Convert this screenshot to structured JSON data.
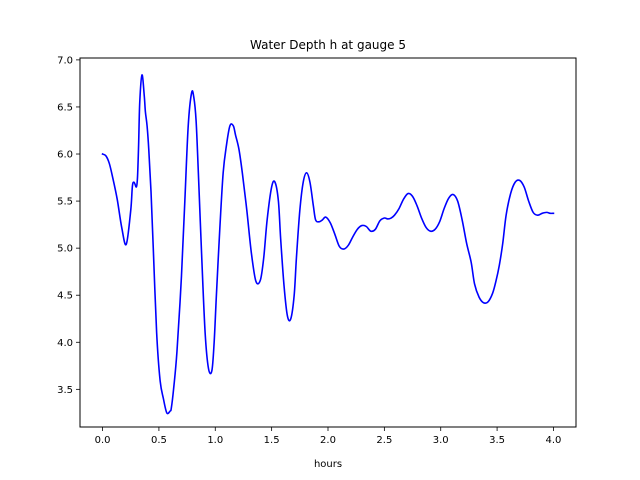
{
  "chart_data": {
    "type": "line",
    "title": "Water Depth h at gauge 5",
    "xlabel": "hours",
    "ylabel": "",
    "xlim": [
      -0.2,
      4.2
    ],
    "ylim": [
      3.1,
      7.02
    ],
    "grid": false,
    "x_ticks": [
      0.0,
      0.5,
      1.0,
      1.5,
      2.0,
      2.5,
      3.0,
      3.5,
      4.0
    ],
    "x_tick_labels": [
      "0.0",
      "0.5",
      "1.0",
      "1.5",
      "2.0",
      "2.5",
      "3.0",
      "3.5",
      "4.0"
    ],
    "y_ticks": [
      3.5,
      4.0,
      4.5,
      5.0,
      5.5,
      6.0,
      6.5,
      7.0
    ],
    "y_tick_labels": [
      "3.5",
      "4.0",
      "4.5",
      "5.0",
      "5.5",
      "6.0",
      "6.5",
      "7.0"
    ],
    "series": [
      {
        "color": "#0000ff",
        "x": [
          0.0,
          0.03,
          0.06,
          0.09,
          0.13,
          0.17,
          0.21,
          0.25,
          0.265,
          0.28,
          0.3,
          0.31,
          0.32,
          0.33,
          0.35,
          0.37,
          0.38,
          0.395,
          0.41,
          0.43,
          0.45,
          0.48,
          0.51,
          0.54,
          0.57,
          0.6,
          0.61,
          0.63,
          0.66,
          0.7,
          0.73,
          0.76,
          0.79,
          0.81,
          0.83,
          0.85,
          0.88,
          0.91,
          0.94,
          0.97,
          0.99,
          1.01,
          1.04,
          1.07,
          1.1,
          1.13,
          1.16,
          1.18,
          1.21,
          1.24,
          1.28,
          1.32,
          1.36,
          1.4,
          1.43,
          1.46,
          1.5,
          1.53,
          1.56,
          1.58,
          1.61,
          1.64,
          1.67,
          1.7,
          1.72,
          1.75,
          1.78,
          1.81,
          1.84,
          1.87,
          1.89,
          1.92,
          1.95,
          1.98,
          2.02,
          2.06,
          2.1,
          2.14,
          2.18,
          2.22,
          2.26,
          2.3,
          2.34,
          2.38,
          2.42,
          2.46,
          2.5,
          2.53,
          2.56,
          2.59,
          2.63,
          2.67,
          2.71,
          2.75,
          2.79,
          2.83,
          2.87,
          2.91,
          2.95,
          2.99,
          3.03,
          3.07,
          3.11,
          3.15,
          3.19,
          3.23,
          3.27,
          3.3,
          3.34,
          3.38,
          3.42,
          3.46,
          3.49,
          3.52,
          3.55,
          3.58,
          3.62,
          3.66,
          3.7,
          3.74,
          3.78,
          3.82,
          3.86,
          3.9,
          3.94,
          3.97,
          4.0
        ],
        "values": [
          6.0,
          5.98,
          5.9,
          5.75,
          5.52,
          5.22,
          5.04,
          5.4,
          5.66,
          5.7,
          5.65,
          5.75,
          6.1,
          6.55,
          6.84,
          6.62,
          6.45,
          6.3,
          6.05,
          5.6,
          5.0,
          4.1,
          3.6,
          3.4,
          3.25,
          3.27,
          3.3,
          3.5,
          3.9,
          4.7,
          5.5,
          6.3,
          6.65,
          6.6,
          6.35,
          5.8,
          4.9,
          4.1,
          3.72,
          3.7,
          4.0,
          4.5,
          5.2,
          5.8,
          6.1,
          6.3,
          6.3,
          6.2,
          6.05,
          5.8,
          5.4,
          4.95,
          4.65,
          4.66,
          4.9,
          5.3,
          5.65,
          5.7,
          5.5,
          5.1,
          4.6,
          4.28,
          4.25,
          4.5,
          4.9,
          5.4,
          5.7,
          5.8,
          5.7,
          5.45,
          5.3,
          5.28,
          5.3,
          5.33,
          5.27,
          5.15,
          5.02,
          4.99,
          5.03,
          5.12,
          5.2,
          5.24,
          5.23,
          5.18,
          5.2,
          5.29,
          5.32,
          5.31,
          5.32,
          5.35,
          5.42,
          5.52,
          5.58,
          5.55,
          5.45,
          5.32,
          5.22,
          5.18,
          5.2,
          5.28,
          5.42,
          5.53,
          5.57,
          5.5,
          5.3,
          5.05,
          4.85,
          4.62,
          4.48,
          4.42,
          4.43,
          4.52,
          4.65,
          4.82,
          5.05,
          5.35,
          5.58,
          5.7,
          5.72,
          5.65,
          5.5,
          5.38,
          5.35,
          5.37,
          5.38,
          5.37,
          5.37
        ]
      }
    ]
  }
}
